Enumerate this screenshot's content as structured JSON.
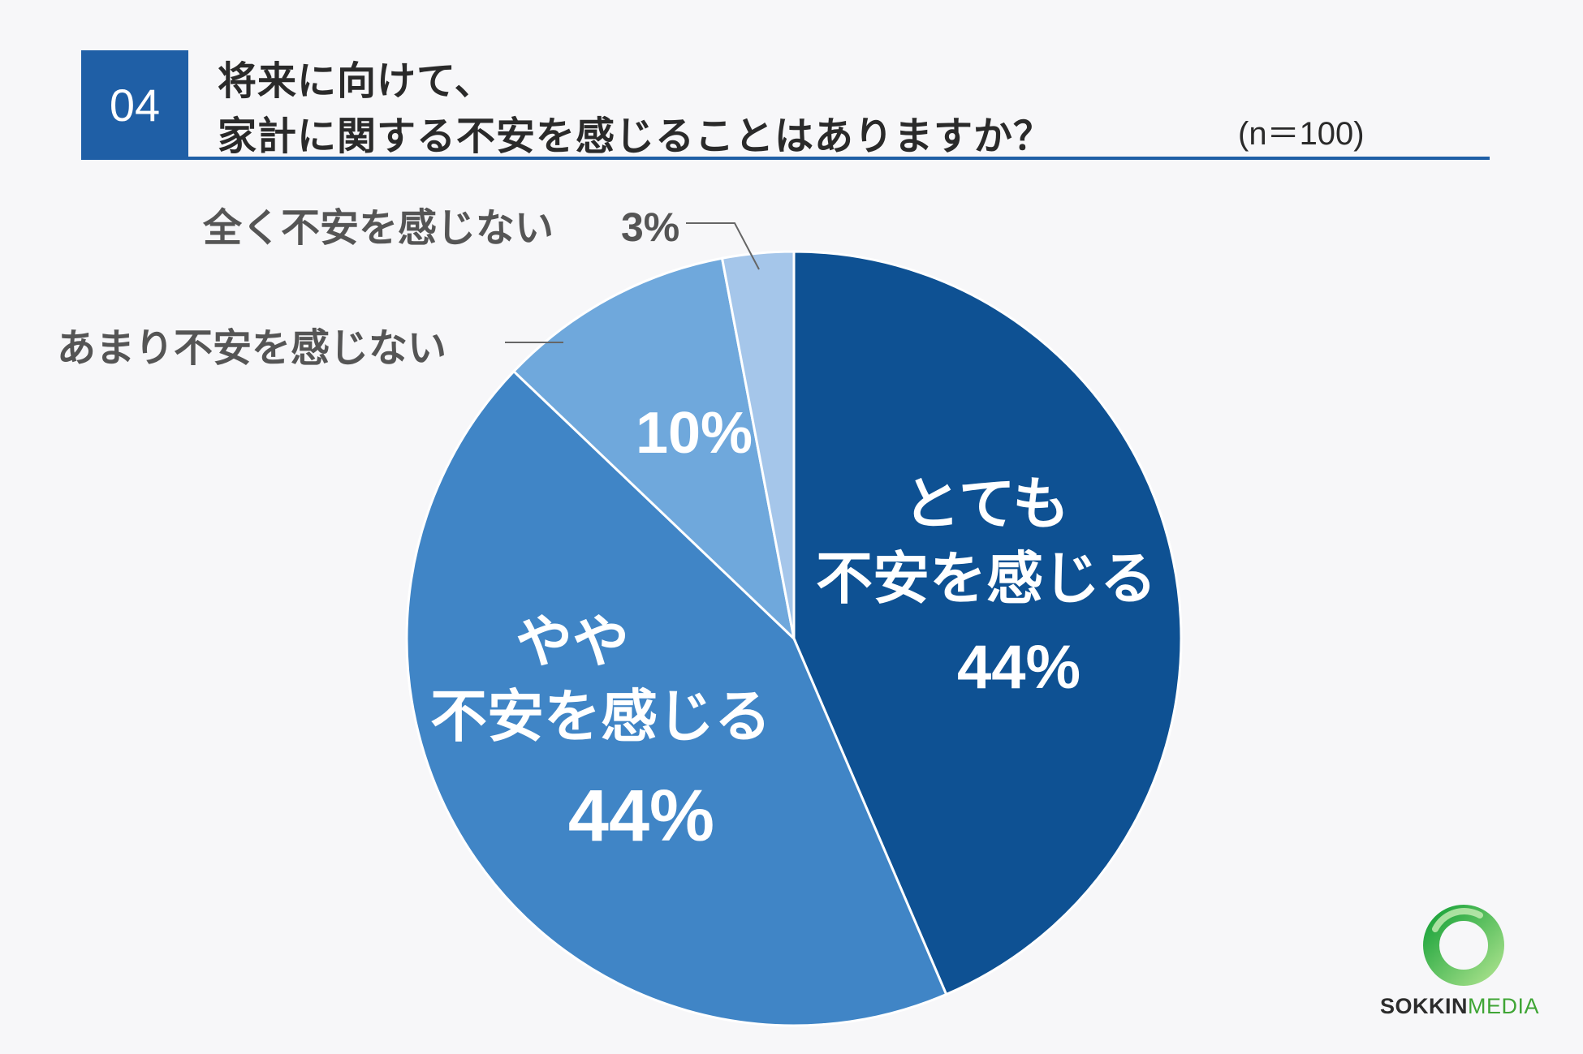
{
  "header": {
    "badge": "04",
    "title_line1": "将来に向けて、",
    "title_line2": "家計に関する不安を感じることはありますか？",
    "sample_size": "(n＝100)"
  },
  "chart_data": {
    "type": "pie",
    "start_angle_deg": 0,
    "direction": "clockwise",
    "slices": [
      {
        "label_lines": [
          "とても",
          "不安を感じる"
        ],
        "value": 44,
        "value_label": "44%",
        "color": "#0e5193",
        "label_position": "inside"
      },
      {
        "label_lines": [
          "やや",
          "不安を感じる"
        ],
        "value": 44,
        "value_label": "44%",
        "color": "#4085c6",
        "label_position": "inside"
      },
      {
        "label_lines": [
          "あまり不安を感じない"
        ],
        "value": 10,
        "value_label": "10%",
        "color": "#6fa8dc",
        "label_position": "split"
      },
      {
        "label_lines": [
          "全く不安を感じない"
        ],
        "value": 3,
        "value_label": "3%",
        "color": "#a5c6ea",
        "label_position": "outside"
      }
    ],
    "label_color_inside": "#ffffff",
    "label_color_outside": "#555555"
  },
  "logo": {
    "text_a": "SOKKIN",
    "text_b": "MEDIA",
    "ring_color_a": "#1aa33a",
    "ring_color_b": "#a6e08a"
  }
}
